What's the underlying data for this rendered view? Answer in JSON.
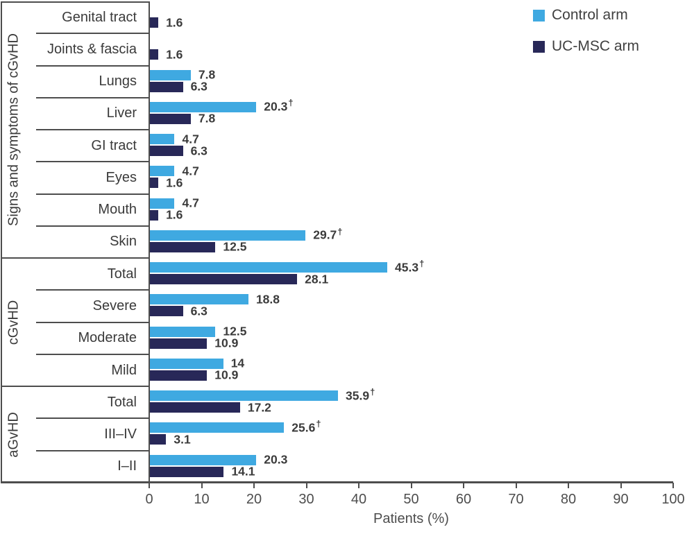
{
  "legend": {
    "items": [
      {
        "label": "Control arm",
        "color": "#3FA9E1"
      },
      {
        "label": "UC-MSC arm",
        "color": "#282858"
      }
    ]
  },
  "axis": {
    "xlabel": "Patients (%)"
  },
  "chart_data": {
    "type": "bar",
    "orientation": "horizontal",
    "title": "",
    "xlabel": "Patients (%)",
    "ylabel_groups": [
      "Signs and symptoms of cGvHD",
      "cGvHD",
      "aGvHD"
    ],
    "xlim": [
      0,
      100
    ],
    "xticks": [
      0,
      10,
      20,
      30,
      40,
      50,
      60,
      70,
      80,
      90,
      100
    ],
    "grid": false,
    "legend_position": "top-right",
    "series_names": [
      "Control arm",
      "UC-MSC arm"
    ],
    "colors": {
      "control": "#3FA9E1",
      "ucmsc": "#282858"
    },
    "dagger_symbol": "†",
    "groups": [
      {
        "label": "Signs and symptoms of cGvHD",
        "rows": [
          {
            "category": "Genital tract",
            "control": null,
            "control_label": "",
            "control_dagger": false,
            "ucmsc": 1.6,
            "ucmsc_label": "1.6"
          },
          {
            "category": "Joints & fascia",
            "control": null,
            "control_label": "",
            "control_dagger": false,
            "ucmsc": 1.6,
            "ucmsc_label": "1.6"
          },
          {
            "category": "Lungs",
            "control": 7.8,
            "control_label": "7.8",
            "control_dagger": false,
            "ucmsc": 6.3,
            "ucmsc_label": "6.3"
          },
          {
            "category": "Liver",
            "control": 20.3,
            "control_label": "20.3",
            "control_dagger": true,
            "ucmsc": 7.8,
            "ucmsc_label": "7.8"
          },
          {
            "category": "GI tract",
            "control": 4.7,
            "control_label": "4.7",
            "control_dagger": false,
            "ucmsc": 6.3,
            "ucmsc_label": "6.3"
          },
          {
            "category": "Eyes",
            "control": 4.7,
            "control_label": "4.7",
            "control_dagger": false,
            "ucmsc": 1.6,
            "ucmsc_label": "1.6"
          },
          {
            "category": "Mouth",
            "control": 4.7,
            "control_label": "4.7",
            "control_dagger": false,
            "ucmsc": 1.6,
            "ucmsc_label": "1.6"
          },
          {
            "category": "Skin",
            "control": 29.7,
            "control_label": "29.7",
            "control_dagger": true,
            "ucmsc": 12.5,
            "ucmsc_label": "12.5"
          }
        ]
      },
      {
        "label": "cGvHD",
        "rows": [
          {
            "category": "Total",
            "control": 45.3,
            "control_label": "45.3",
            "control_dagger": true,
            "ucmsc": 28.1,
            "ucmsc_label": "28.1"
          },
          {
            "category": "Severe",
            "control": 18.8,
            "control_label": "18.8",
            "control_dagger": false,
            "ucmsc": 6.3,
            "ucmsc_label": "6.3"
          },
          {
            "category": "Moderate",
            "control": 12.5,
            "control_label": "12.5",
            "control_dagger": false,
            "ucmsc": 10.9,
            "ucmsc_label": "10.9"
          },
          {
            "category": "Mild",
            "control": 14,
            "control_label": "14",
            "control_dagger": false,
            "ucmsc": 10.9,
            "ucmsc_label": "10.9"
          }
        ]
      },
      {
        "label": "aGvHD",
        "rows": [
          {
            "category": "Total",
            "control": 35.9,
            "control_label": "35.9",
            "control_dagger": true,
            "ucmsc": 17.2,
            "ucmsc_label": "17.2"
          },
          {
            "category": "III–IV",
            "control": 25.6,
            "control_label": "25.6",
            "control_dagger": true,
            "ucmsc": 3.1,
            "ucmsc_label": "3.1"
          },
          {
            "category": "I–II",
            "control": 20.3,
            "control_label": "20.3",
            "control_dagger": false,
            "ucmsc": 14.1,
            "ucmsc_label": "14.1"
          }
        ]
      }
    ]
  }
}
